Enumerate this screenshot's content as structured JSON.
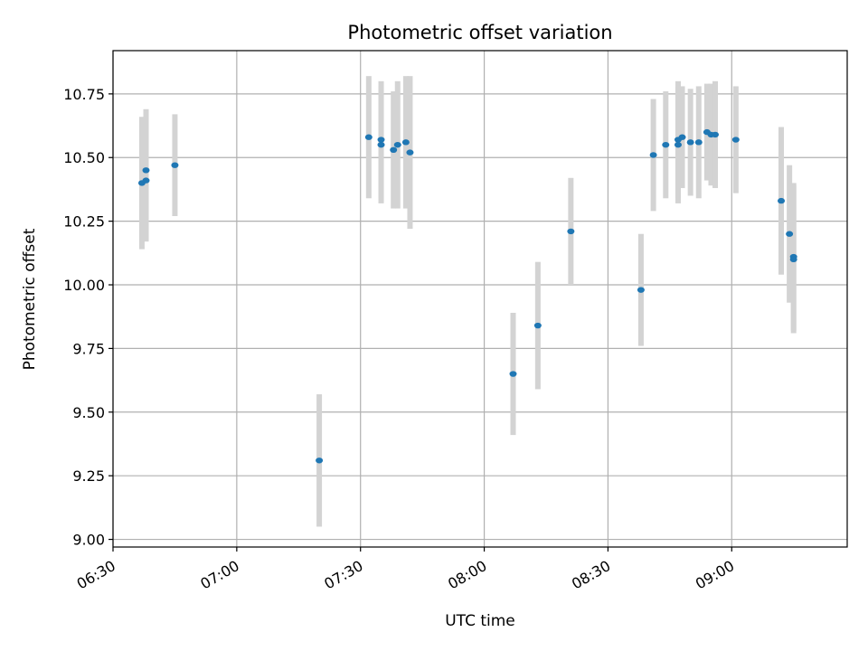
{
  "chart_data": {
    "type": "scatter",
    "title": "Photometric offset variation",
    "xlabel": "UTC time",
    "ylabel": "Photometric offset",
    "grid": true,
    "xlim": [
      "06:30",
      "09:28"
    ],
    "ylim": [
      8.97,
      10.92
    ],
    "x_ticks": [
      "06:30",
      "07:00",
      "07:30",
      "08:00",
      "08:30",
      "09:00"
    ],
    "y_ticks": [
      "9.00",
      "9.25",
      "9.50",
      "9.75",
      "10.00",
      "10.25",
      "10.50",
      "10.75"
    ],
    "colors": {
      "point": "#1f77b4",
      "error_bar": "#d3d3d3",
      "grid": "#b0b0b0"
    },
    "series": [
      {
        "points": [
          {
            "x": "06:37",
            "y": 10.4,
            "err": 0.26
          },
          {
            "x": "06:38",
            "y": 10.41,
            "err": 0.24
          },
          {
            "x": "06:38",
            "y": 10.45,
            "err": 0.24
          },
          {
            "x": "06:45",
            "y": 10.47,
            "err": 0.2
          },
          {
            "x": "07:20",
            "y": 9.31,
            "err": 0.26
          },
          {
            "x": "07:32",
            "y": 10.58,
            "err": 0.24
          },
          {
            "x": "07:35",
            "y": 10.57,
            "err": 0.23
          },
          {
            "x": "07:35",
            "y": 10.55,
            "err": 0.23
          },
          {
            "x": "07:38",
            "y": 10.53,
            "err": 0.23
          },
          {
            "x": "07:39",
            "y": 10.55,
            "err": 0.25
          },
          {
            "x": "07:41",
            "y": 10.56,
            "err": 0.26
          },
          {
            "x": "07:42",
            "y": 10.52,
            "err": 0.3
          },
          {
            "x": "08:07",
            "y": 9.65,
            "err": 0.24
          },
          {
            "x": "08:13",
            "y": 9.84,
            "err": 0.25
          },
          {
            "x": "08:21",
            "y": 10.21,
            "err": 0.21
          },
          {
            "x": "08:38",
            "y": 9.98,
            "err": 0.22
          },
          {
            "x": "08:41",
            "y": 10.51,
            "err": 0.22
          },
          {
            "x": "08:44",
            "y": 10.55,
            "err": 0.21
          },
          {
            "x": "08:47",
            "y": 10.57,
            "err": 0.23
          },
          {
            "x": "08:47",
            "y": 10.55,
            "err": 0.23
          },
          {
            "x": "08:48",
            "y": 10.58,
            "err": 0.2
          },
          {
            "x": "08:50",
            "y": 10.56,
            "err": 0.21
          },
          {
            "x": "08:52",
            "y": 10.56,
            "err": 0.22
          },
          {
            "x": "08:54",
            "y": 10.6,
            "err": 0.19
          },
          {
            "x": "08:55",
            "y": 10.59,
            "err": 0.2
          },
          {
            "x": "08:56",
            "y": 10.59,
            "err": 0.21
          },
          {
            "x": "09:01",
            "y": 10.57,
            "err": 0.21
          },
          {
            "x": "09:12",
            "y": 10.33,
            "err": 0.29
          },
          {
            "x": "09:14",
            "y": 10.2,
            "err": 0.27
          },
          {
            "x": "09:15",
            "y": 10.11,
            "err": 0.29
          },
          {
            "x": "09:15",
            "y": 10.1,
            "err": 0.29
          }
        ]
      }
    ]
  }
}
